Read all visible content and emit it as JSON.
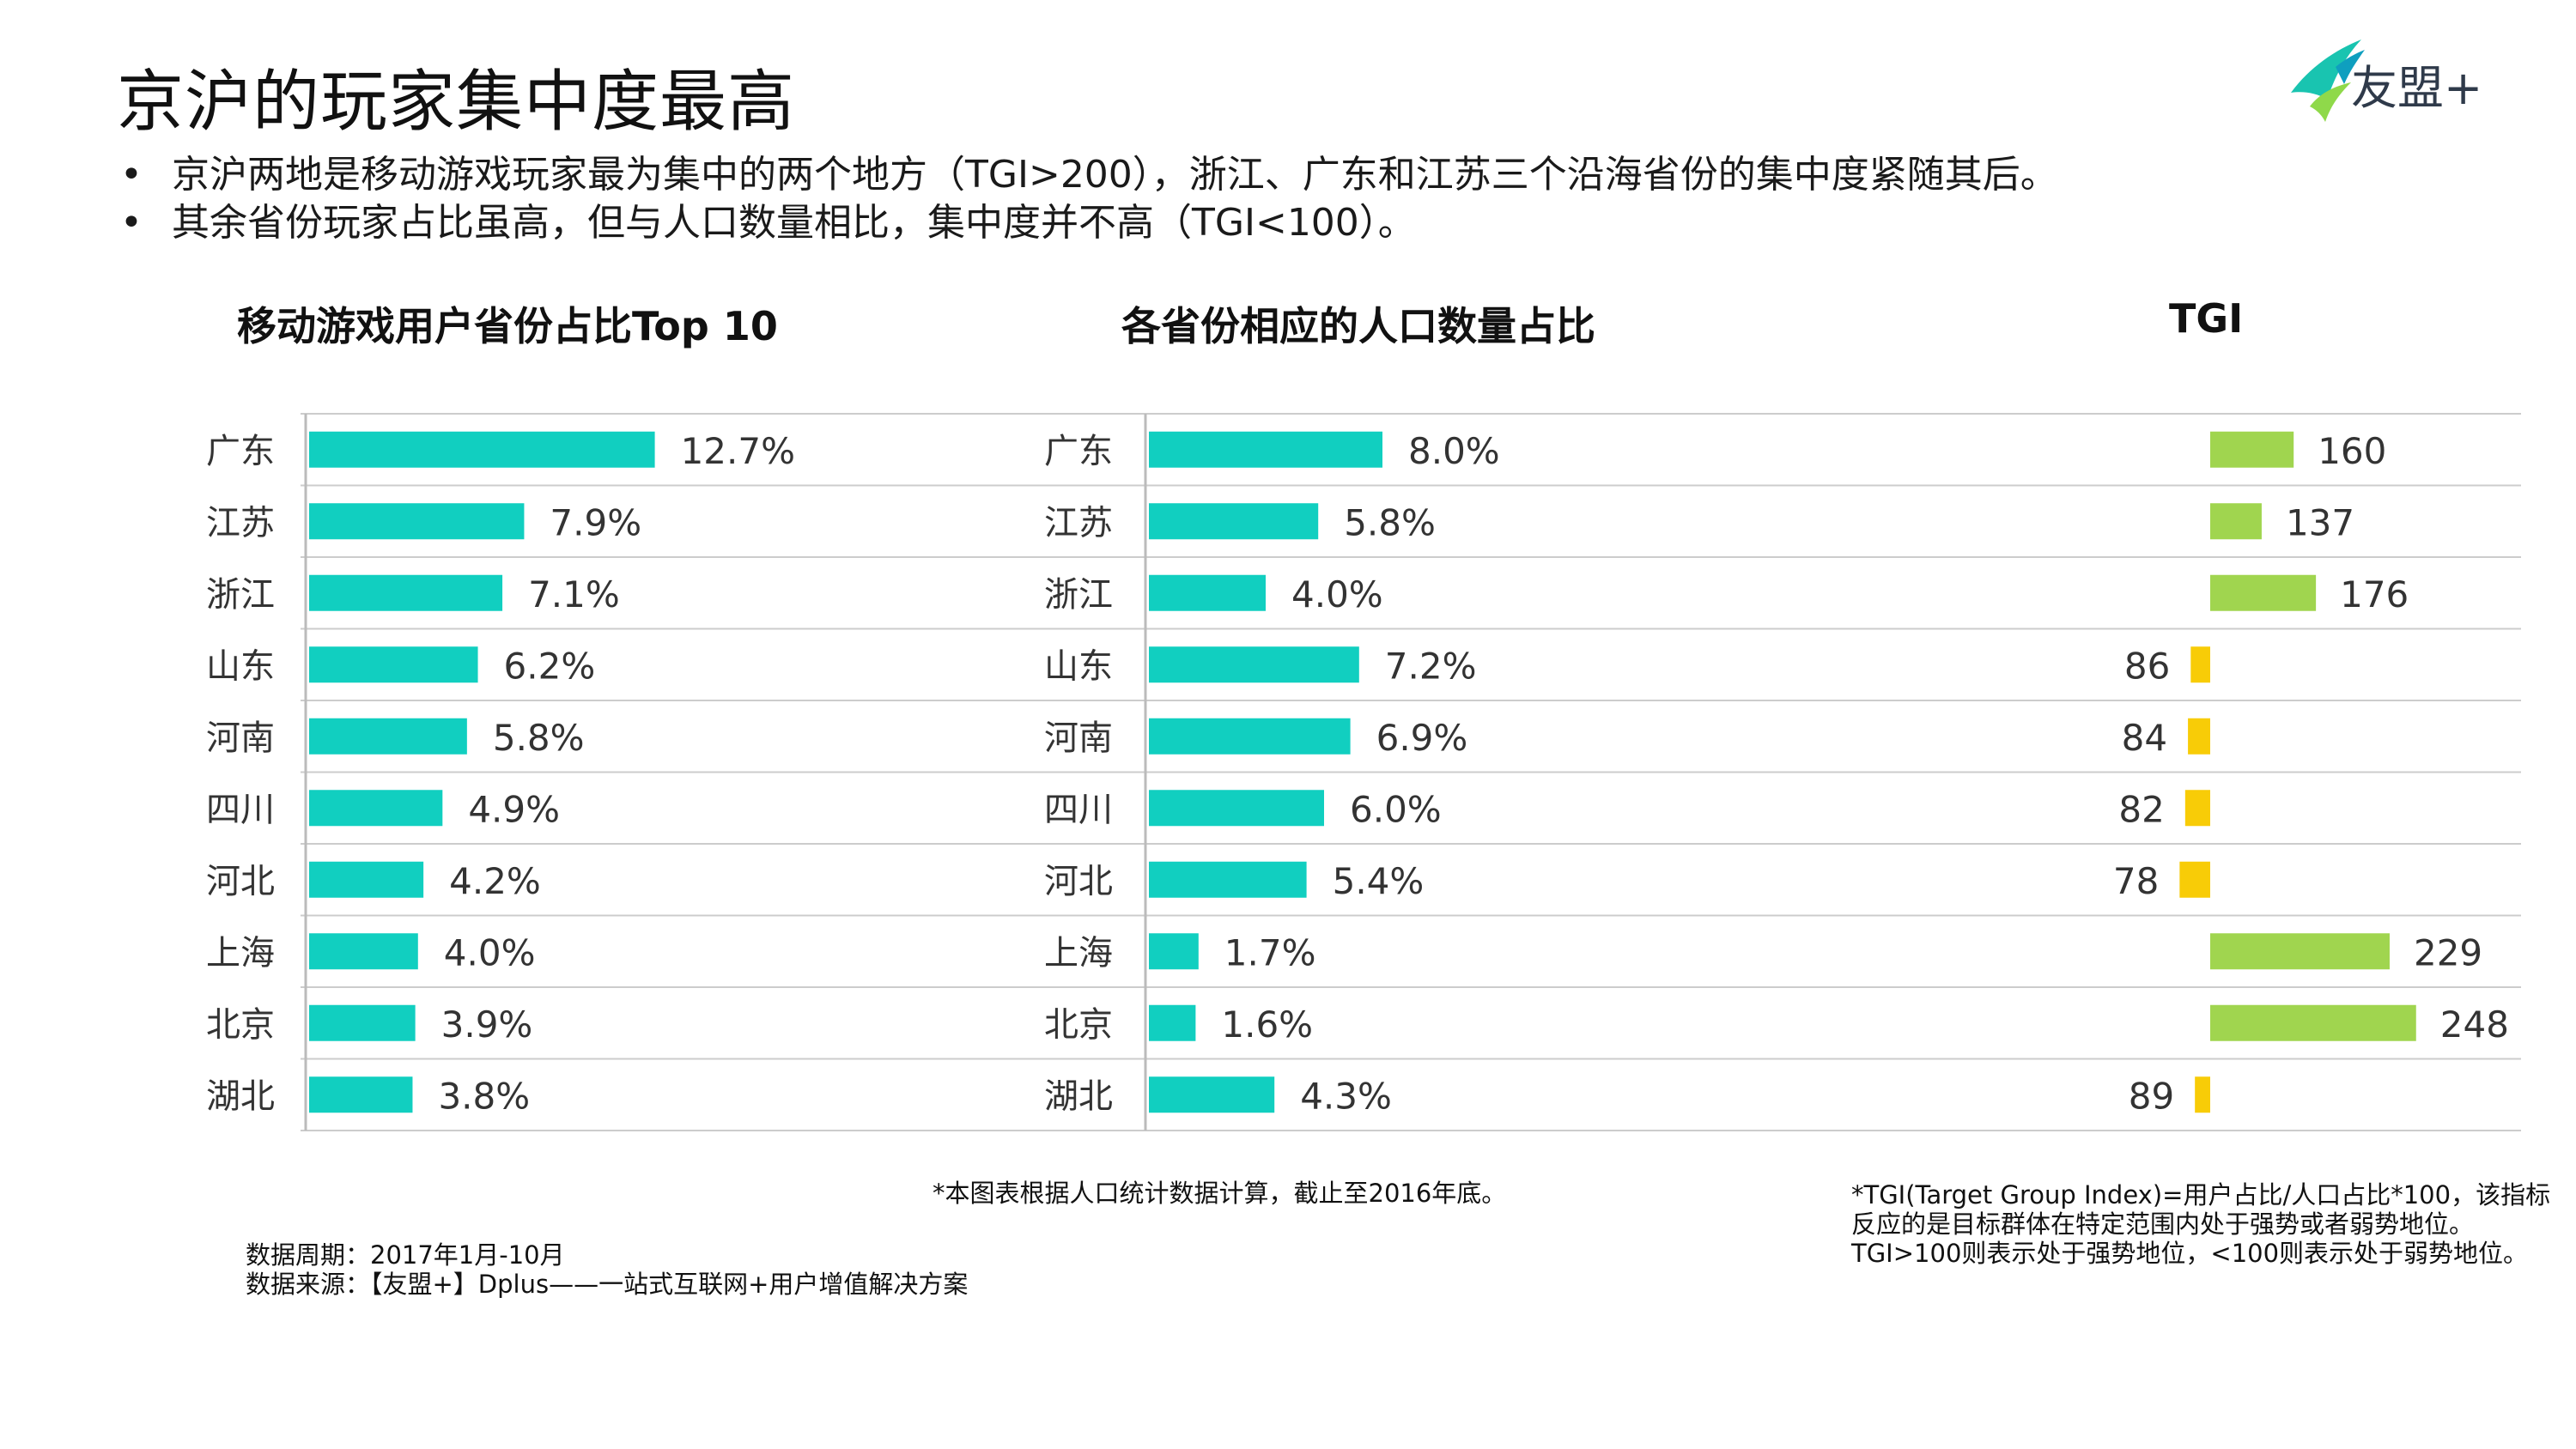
{
  "title": "京沪的玩家集中度最高",
  "brand": {
    "logo_text": "友盟+",
    "accent": "#1fb8a6",
    "dark": "#2f3a4a"
  },
  "bullets": [
    "京沪两地是移动游戏玩家最为集中的两个地方（TGI>200），浙江、广东和江苏三个沿海省份的集中度紧随其后。",
    "其余省份玩家占比虽高，但与人口数量相比，集中度并不高（TGI<100）。"
  ],
  "colors": {
    "teal": "#11cfc0",
    "green": "#a0d54f",
    "yellow": "#f8cc07",
    "rule": "#cccccc"
  },
  "chart_data": [
    {
      "type": "bar",
      "orientation": "horizontal",
      "title": "移动游戏用户省份占比Top 10",
      "categories": [
        "广东",
        "江苏",
        "浙江",
        "山东",
        "河南",
        "四川",
        "河北",
        "上海",
        "北京",
        "湖北"
      ],
      "values": [
        12.7,
        7.9,
        7.1,
        6.2,
        5.8,
        4.9,
        4.2,
        4.0,
        3.9,
        3.8
      ],
      "labels": [
        "12.7%",
        "7.9%",
        "7.1%",
        "6.2%",
        "5.8%",
        "4.9%",
        "4.2%",
        "4.0%",
        "3.9%",
        "3.8%"
      ],
      "xlim": [
        0,
        14
      ],
      "unit": "%"
    },
    {
      "type": "bar",
      "orientation": "horizontal",
      "title": "各省份相应的人口数量占比",
      "categories": [
        "广东",
        "江苏",
        "浙江",
        "山东",
        "河南",
        "四川",
        "河北",
        "上海",
        "北京",
        "湖北"
      ],
      "values": [
        8.0,
        5.8,
        4.0,
        7.2,
        6.9,
        6.0,
        5.4,
        1.7,
        1.6,
        4.3
      ],
      "labels": [
        "8.0%",
        "5.8%",
        "4.0%",
        "7.2%",
        "6.9%",
        "6.0%",
        "5.4%",
        "1.7%",
        "1.6%",
        "4.3%"
      ],
      "xlim": [
        0,
        14
      ],
      "unit": "%"
    },
    {
      "type": "bar",
      "orientation": "diverging",
      "title": "TGI",
      "baseline": 100,
      "categories": [
        "广东",
        "江苏",
        "浙江",
        "山东",
        "河南",
        "四川",
        "河北",
        "上海",
        "北京",
        "湖北"
      ],
      "values": [
        160,
        137,
        176,
        86,
        84,
        82,
        78,
        229,
        248,
        89
      ],
      "labels": [
        "160",
        "137",
        "176",
        "86",
        "84",
        "82",
        "78",
        "229",
        "248",
        "89"
      ]
    }
  ],
  "notes": {
    "population": "*本图表根据人口统计数据计算，截止至2016年底。",
    "tgi": [
      "*TGI(Target Group Index)=用户占比/人口占比*100，该指标",
      "反应的是目标群体在特定范围内处于强势或者弱势地位。",
      "TGI>100则表示处于强势地位，<100则表示处于弱势地位。"
    ],
    "period": "数据周期：2017年1月-10月",
    "source": "数据来源：【友盟+】Dplus——一站式互联网+用户增值解决方案"
  }
}
